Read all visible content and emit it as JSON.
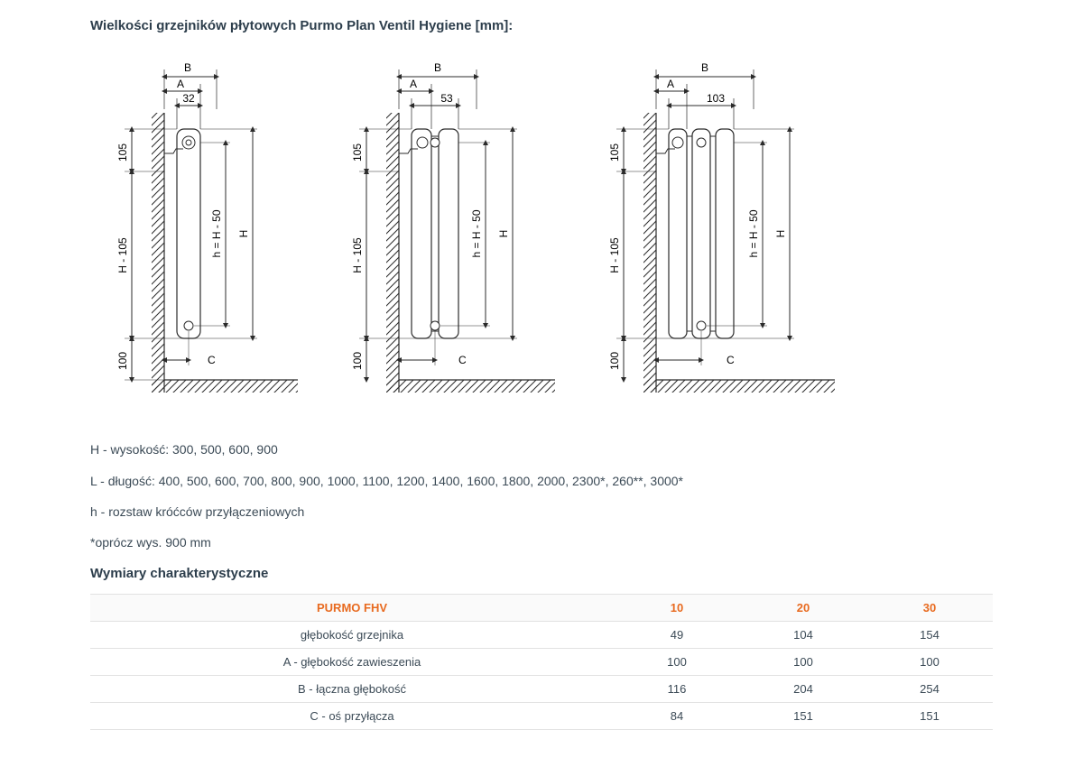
{
  "title": "Wielkości grzejników płytowych Purmo Plan Ventil Hygiene [mm]:",
  "drawings": {
    "common": {
      "label_B": "B",
      "label_A": "A",
      "label_C": "C",
      "label_105": "105",
      "label_H105": "H - 105",
      "label_100": "100",
      "label_hH50": "h = H - 50",
      "label_H": "H",
      "stroke": "#2b2b2b",
      "fill_light": "#ffffff",
      "wall_hatch": "#2b2b2b"
    },
    "d1": {
      "top_dim": "32"
    },
    "d2": {
      "top_dim": "53"
    },
    "d3": {
      "top_dim": "103"
    }
  },
  "legend": {
    "H": "H - wysokość: 300, 500, 600, 900",
    "L": "L - długość: 400, 500, 600, 700, 800, 900, 1000, 1100, 1200, 1400, 1600, 1800, 2000, 2300*, 260**, 3000*",
    "h": "h - rozstaw króćców przyłączeniowych"
  },
  "note": "*oprócz wys. 900 mm",
  "subtitle": "Wymiary charakterystyczne",
  "table": {
    "header": [
      "PURMO FHV",
      "10",
      "20",
      "30"
    ],
    "rows": [
      [
        "głębokość grzejnika",
        "49",
        "104",
        "154"
      ],
      [
        "A - głębokość zawieszenia",
        "100",
        "100",
        "100"
      ],
      [
        "B - łączna głębokość",
        "116",
        "204",
        "254"
      ],
      [
        "C - oś przyłącza",
        "84",
        "151",
        "151"
      ]
    ],
    "accent_color": "#e86a1f",
    "border_color": "#e2e2e2",
    "text_color": "#3b4a56"
  }
}
